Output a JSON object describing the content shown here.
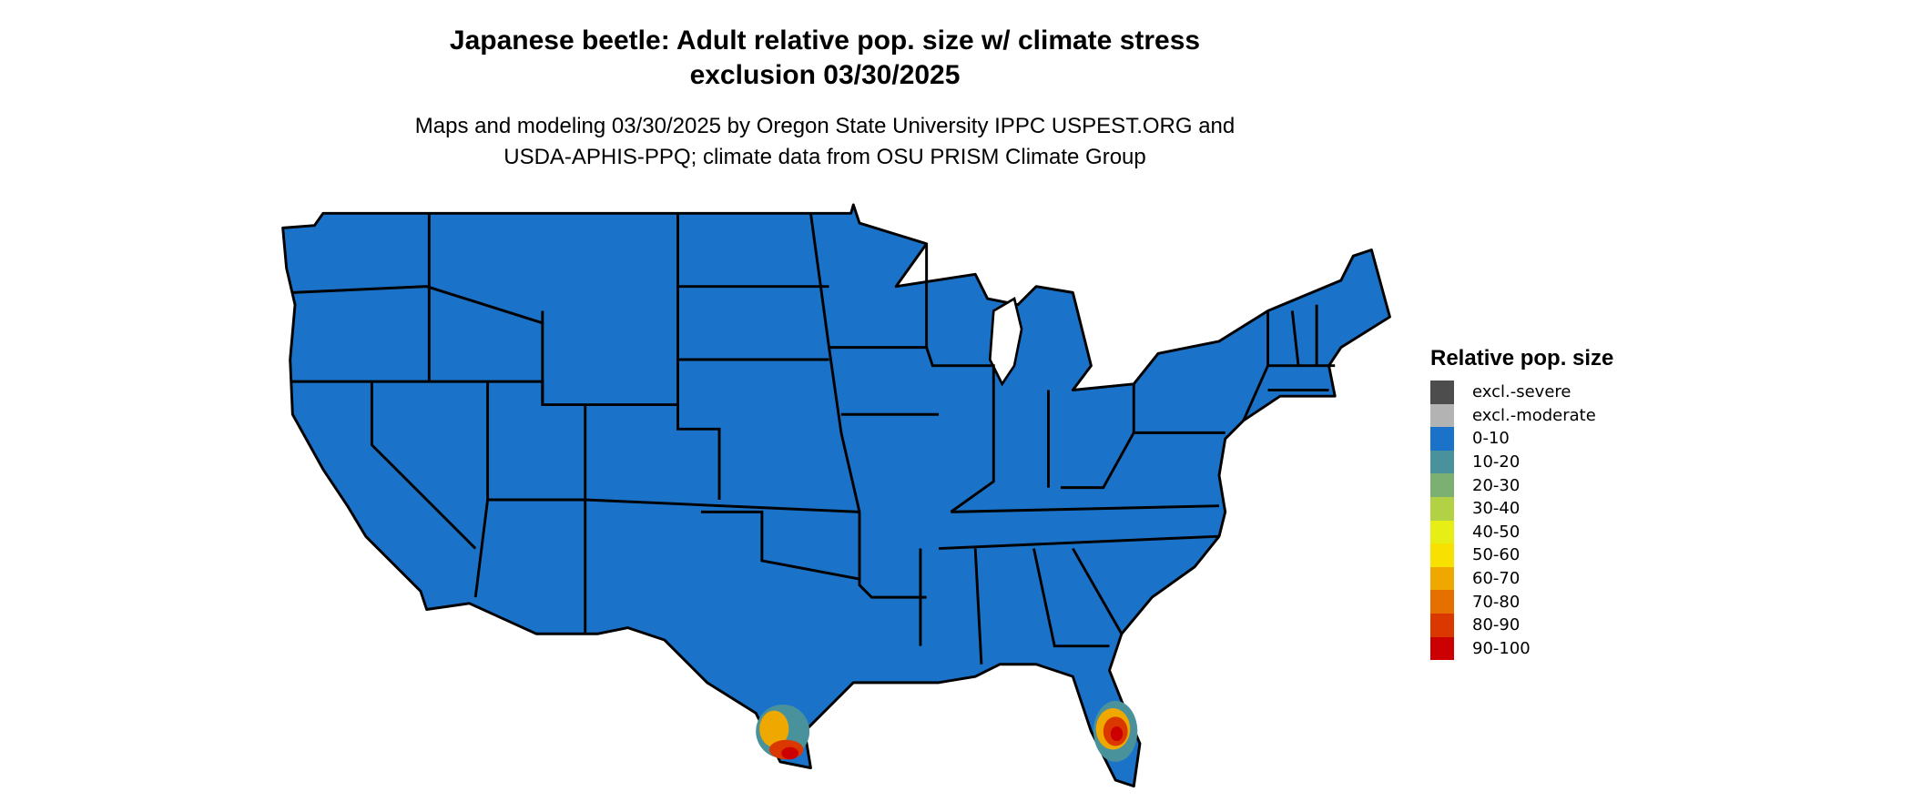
{
  "title_line1": "Japanese beetle: Adult relative pop. size w/ climate stress",
  "title_line2": "exclusion 03/30/2025",
  "subtitle_line1": "Maps and modeling 03/30/2025 by Oregon State University IPPC USPEST.ORG and",
  "subtitle_line2": "USDA-APHIS-PPQ; climate data from OSU PRISM Climate Group",
  "chart_data": {
    "type": "map",
    "region": "Contiguous United States",
    "legend_title": "Relative pop. size",
    "legend_position": "right",
    "base_color": "#1a73c9",
    "legend": [
      {
        "label": "excl.-severe",
        "color": "#4d4d4d"
      },
      {
        "label": "excl.-moderate",
        "color": "#b3b3b3"
      },
      {
        "label": "0-10",
        "color": "#1a73c9"
      },
      {
        "label": "10-20",
        "color": "#4a929b"
      },
      {
        "label": "20-30",
        "color": "#7caf72"
      },
      {
        "label": "30-40",
        "color": "#b2d144"
      },
      {
        "label": "40-50",
        "color": "#e5ef15"
      },
      {
        "label": "50-60",
        "color": "#f8e000"
      },
      {
        "label": "60-70",
        "color": "#efa800"
      },
      {
        "label": "70-80",
        "color": "#e57000"
      },
      {
        "label": "80-90",
        "color": "#db3800"
      },
      {
        "label": "90-100",
        "color": "#cc0000"
      }
    ],
    "hotspots": [
      {
        "area": "South Texas",
        "max_class": "90-100"
      },
      {
        "area": "South Florida",
        "max_class": "90-100"
      }
    ]
  }
}
